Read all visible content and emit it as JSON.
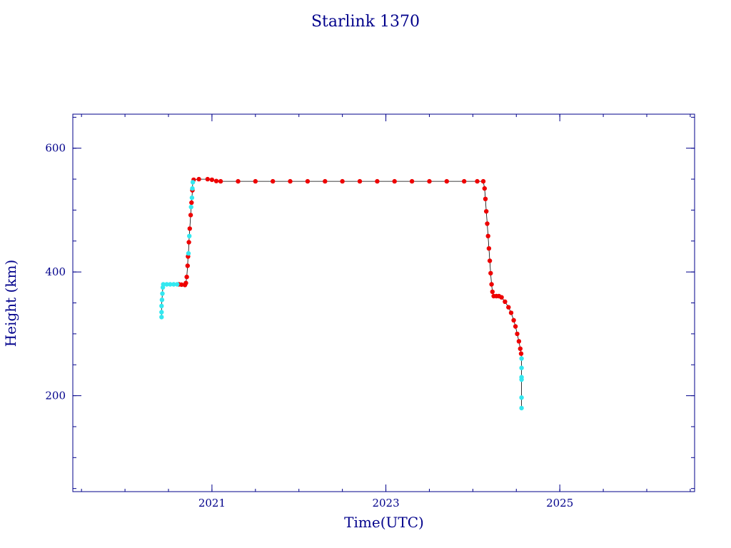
{
  "chart_data": {
    "type": "scatter",
    "title": "Starlink 1370",
    "xlabel": "Time(UTC)",
    "ylabel": "Height (km)",
    "xlim": [
      2019.4,
      2026.55
    ],
    "ylim": [
      45,
      655
    ],
    "x_major_ticks": [
      2021,
      2023,
      2025
    ],
    "x_tick_labels": [
      "2021",
      "2023",
      "2025"
    ],
    "y_major_ticks": [
      200,
      400,
      600
    ],
    "y_tick_labels": [
      "200",
      "400",
      "600"
    ],
    "grid": false,
    "legend": "none",
    "colors": {
      "axis": "#00008b",
      "primary_points": "#ee0000",
      "secondary_points": "#33e8f0",
      "connector_line": "#000000"
    },
    "series": [
      {
        "color": "#ee0000",
        "points": [
          [
            2020.62,
            380
          ],
          [
            2020.65,
            379.5
          ],
          [
            2020.69,
            379
          ],
          [
            2020.7,
            382
          ],
          [
            2020.71,
            392
          ],
          [
            2020.72,
            410
          ],
          [
            2020.725,
            425
          ],
          [
            2020.735,
            448
          ],
          [
            2020.745,
            470
          ],
          [
            2020.755,
            492
          ],
          [
            2020.765,
            512
          ],
          [
            2020.775,
            532
          ],
          [
            2020.79,
            549
          ],
          [
            2020.85,
            550
          ],
          [
            2020.95,
            550
          ],
          [
            2021.0,
            549
          ],
          [
            2021.05,
            547
          ],
          [
            2021.1,
            546.5
          ],
          [
            2021.3,
            546.5
          ],
          [
            2021.5,
            546.5
          ],
          [
            2021.7,
            546.5
          ],
          [
            2021.9,
            546.5
          ],
          [
            2022.1,
            546.5
          ],
          [
            2022.3,
            546.5
          ],
          [
            2022.5,
            546.5
          ],
          [
            2022.7,
            546.5
          ],
          [
            2022.9,
            546.5
          ],
          [
            2023.1,
            546.5
          ],
          [
            2023.3,
            546.5
          ],
          [
            2023.5,
            546.5
          ],
          [
            2023.7,
            546.5
          ],
          [
            2023.9,
            546.5
          ],
          [
            2024.05,
            546.5
          ],
          [
            2024.12,
            546.5
          ],
          [
            2024.135,
            535
          ],
          [
            2024.145,
            518
          ],
          [
            2024.155,
            498
          ],
          [
            2024.165,
            478
          ],
          [
            2024.175,
            458
          ],
          [
            2024.185,
            438
          ],
          [
            2024.195,
            418
          ],
          [
            2024.205,
            398
          ],
          [
            2024.215,
            380
          ],
          [
            2024.225,
            368
          ],
          [
            2024.24,
            361
          ],
          [
            2024.27,
            361
          ],
          [
            2024.3,
            361
          ],
          [
            2024.33,
            359
          ],
          [
            2024.37,
            352
          ],
          [
            2024.41,
            343
          ],
          [
            2024.44,
            334
          ],
          [
            2024.47,
            322
          ],
          [
            2024.49,
            312
          ],
          [
            2024.51,
            300
          ],
          [
            2024.53,
            288
          ],
          [
            2024.545,
            276
          ],
          [
            2024.555,
            268
          ]
        ]
      },
      {
        "color": "#33e8f0",
        "points": [
          [
            2020.42,
            327
          ],
          [
            2020.42,
            335
          ],
          [
            2020.42,
            345
          ],
          [
            2020.425,
            355
          ],
          [
            2020.43,
            365
          ],
          [
            2020.435,
            375
          ],
          [
            2020.44,
            380
          ],
          [
            2020.48,
            380
          ],
          [
            2020.52,
            380
          ],
          [
            2020.56,
            380
          ],
          [
            2020.6,
            380
          ],
          [
            2020.73,
            430
          ],
          [
            2020.74,
            458
          ],
          [
            2020.76,
            505
          ],
          [
            2020.77,
            520
          ],
          [
            2020.775,
            535
          ],
          [
            2020.78,
            545
          ],
          [
            2024.56,
            260
          ],
          [
            2024.56,
            245
          ],
          [
            2024.56,
            230
          ],
          [
            2024.56,
            226
          ],
          [
            2024.56,
            197
          ],
          [
            2024.56,
            180
          ]
        ]
      }
    ]
  }
}
